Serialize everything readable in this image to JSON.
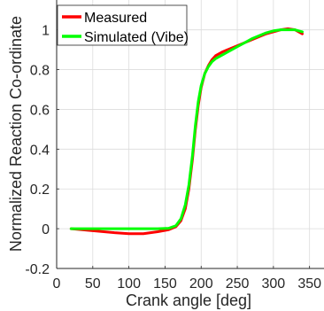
{
  "chart_data": {
    "type": "line",
    "xlabel": "Crank angle [deg]",
    "ylabel": "Normalized Reaction Co-ordinate",
    "xlim": [
      0,
      370
    ],
    "ylim": [
      -0.2,
      1.15
    ],
    "xticks": [
      0,
      50,
      100,
      150,
      200,
      250,
      300,
      350
    ],
    "yticks": [
      -0.2,
      0,
      0.2,
      0.4,
      0.6,
      0.8,
      1
    ],
    "ytick_labels": [
      "-0.2",
      "0",
      "0.2",
      "0.4",
      "0.6",
      "0.8",
      "1"
    ],
    "grid": true,
    "legend_position": "top-left",
    "series": [
      {
        "name": "Measured",
        "color": "#ff0000",
        "x": [
          20,
          50,
          80,
          100,
          120,
          140,
          155,
          165,
          172,
          178,
          183,
          188,
          192,
          196,
          200,
          205,
          210,
          215,
          220,
          230,
          240,
          250,
          260,
          270,
          280,
          290,
          300,
          310,
          320,
          330,
          340
        ],
        "y": [
          0.0,
          -0.01,
          -0.02,
          -0.025,
          -0.025,
          -0.015,
          -0.005,
          0.01,
          0.04,
          0.1,
          0.2,
          0.35,
          0.5,
          0.62,
          0.71,
          0.78,
          0.82,
          0.85,
          0.87,
          0.89,
          0.905,
          0.92,
          0.935,
          0.95,
          0.965,
          0.98,
          0.99,
          1.0,
          1.005,
          1.0,
          0.98
        ]
      },
      {
        "name": "Simulated (Vibe)",
        "color": "#00ff00",
        "x": [
          20,
          50,
          100,
          140,
          155,
          165,
          172,
          178,
          183,
          188,
          192,
          196,
          200,
          205,
          210,
          215,
          220,
          230,
          240,
          250,
          260,
          270,
          280,
          290,
          300,
          310,
          320,
          330,
          340
        ],
        "y": [
          0.0,
          0.0,
          0.0,
          0.0,
          0.002,
          0.015,
          0.05,
          0.12,
          0.22,
          0.37,
          0.52,
          0.64,
          0.72,
          0.78,
          0.815,
          0.84,
          0.855,
          0.875,
          0.895,
          0.915,
          0.935,
          0.955,
          0.97,
          0.985,
          0.995,
          1.0,
          1.0,
          1.0,
          0.99
        ]
      }
    ]
  }
}
